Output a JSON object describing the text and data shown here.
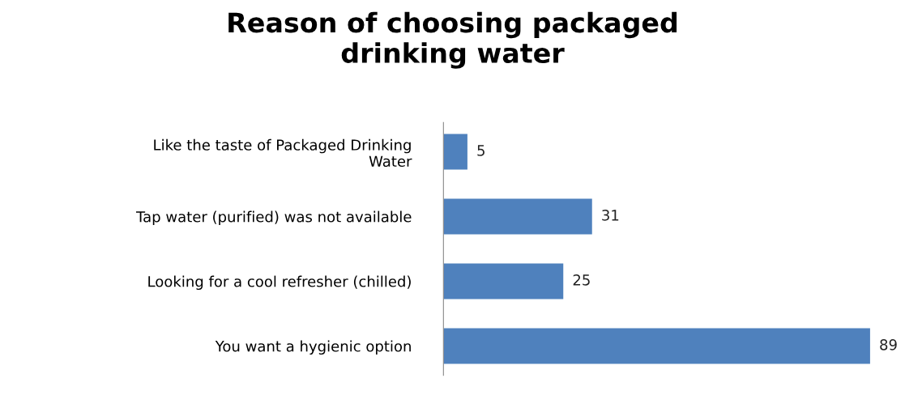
{
  "chart_data": {
    "type": "bar",
    "orientation": "horizontal",
    "title": "Reason of choosing packaged\ndrinking water",
    "categories": [
      "Like the taste of Packaged Drinking\nWater",
      "Tap water (purified) was not available",
      "Looking for a cool refresher (chilled)",
      "You want a hygienic option"
    ],
    "values": [
      5,
      31,
      25,
      89
    ],
    "color": "#4f81bd",
    "data_labels": true,
    "grid": false,
    "legend": false,
    "tick_labels": "y"
  }
}
